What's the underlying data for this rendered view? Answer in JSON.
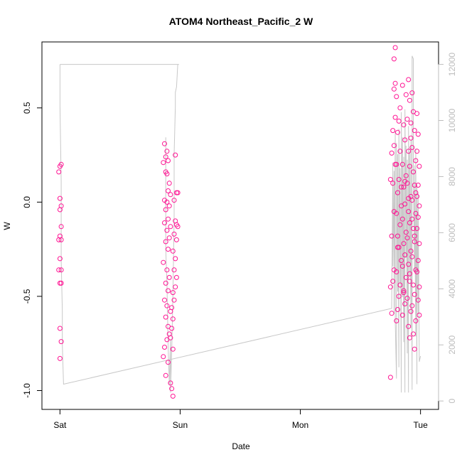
{
  "chart_data": {
    "type": "scatter",
    "title": "ATOM4 Northeast_Pacific_2 W",
    "xlabel": "Date",
    "ylabel": "W",
    "x_ticks": [
      {
        "label": "Sat",
        "value": 0
      },
      {
        "label": "Sun",
        "value": 1
      },
      {
        "label": "Mon",
        "value": 2
      },
      {
        "label": "Tue",
        "value": 3
      }
    ],
    "xlim": [
      -0.15,
      3.15
    ],
    "ylim": [
      -1.1,
      0.85
    ],
    "y_ticks": [
      -1.0,
      -0.5,
      0.0,
      0.5
    ],
    "y_tick_labels": [
      "-1.0",
      "-0.5",
      "0.0",
      "0.5"
    ],
    "y2lim": [
      -300,
      12800
    ],
    "y2_ticks": [
      0,
      2000,
      4000,
      6000,
      8000,
      10000,
      12000
    ],
    "y2_tick_labels": [
      "0",
      "2000",
      "4000",
      "6000",
      "8000",
      "10000",
      "12000"
    ],
    "grid": false,
    "series": [
      {
        "kind": "points",
        "axis": "left",
        "color": "#ff1493",
        "points": [
          [
            0.0,
            0.19
          ],
          [
            0.01,
            0.2
          ],
          [
            -0.01,
            0.16
          ],
          [
            0.0,
            0.02
          ],
          [
            0.01,
            -0.02
          ],
          [
            0.0,
            -0.04
          ],
          [
            0.01,
            -0.13
          ],
          [
            0.0,
            -0.18
          ],
          [
            -0.01,
            -0.2
          ],
          [
            0.01,
            -0.2
          ],
          [
            0.0,
            -0.3
          ],
          [
            -0.01,
            -0.36
          ],
          [
            0.01,
            -0.36
          ],
          [
            0.0,
            -0.43
          ],
          [
            0.01,
            -0.43
          ],
          [
            0.0,
            -0.67
          ],
          [
            0.01,
            -0.74
          ],
          [
            0.0,
            -0.83
          ],
          [
            0.87,
            0.31
          ],
          [
            0.89,
            0.27
          ],
          [
            0.88,
            0.24
          ],
          [
            0.9,
            0.22
          ],
          [
            0.86,
            0.21
          ],
          [
            0.88,
            0.16
          ],
          [
            0.89,
            0.15
          ],
          [
            0.91,
            0.1
          ],
          [
            0.9,
            0.06
          ],
          [
            0.92,
            0.04
          ],
          [
            0.87,
            0.01
          ],
          [
            0.89,
            0.0
          ],
          [
            0.91,
            -0.02
          ],
          [
            0.88,
            -0.04
          ],
          [
            0.9,
            -0.09
          ],
          [
            0.87,
            -0.11
          ],
          [
            0.92,
            -0.13
          ],
          [
            0.89,
            -0.15
          ],
          [
            0.91,
            -0.19
          ],
          [
            0.88,
            -0.21
          ],
          [
            0.9,
            -0.25
          ],
          [
            0.86,
            -0.32
          ],
          [
            0.89,
            -0.36
          ],
          [
            0.91,
            -0.4
          ],
          [
            0.88,
            -0.43
          ],
          [
            0.9,
            -0.47
          ],
          [
            0.87,
            -0.52
          ],
          [
            0.89,
            -0.55
          ],
          [
            0.92,
            -0.58
          ],
          [
            0.88,
            -0.61
          ],
          [
            0.9,
            -0.66
          ],
          [
            0.91,
            -0.7
          ],
          [
            0.89,
            -0.73
          ],
          [
            0.87,
            -0.77
          ],
          [
            0.86,
            -0.82
          ],
          [
            0.9,
            -0.85
          ],
          [
            0.88,
            -0.92
          ],
          [
            0.92,
            -0.96
          ],
          [
            0.93,
            -0.99
          ],
          [
            0.94,
            -1.03
          ],
          [
            0.96,
            0.25
          ],
          [
            0.97,
            0.05
          ],
          [
            0.98,
            0.05
          ],
          [
            0.95,
            0.01
          ],
          [
            0.96,
            -0.1
          ],
          [
            0.97,
            -0.12
          ],
          [
            0.98,
            -0.13
          ],
          [
            0.95,
            -0.17
          ],
          [
            0.97,
            -0.2
          ],
          [
            0.94,
            -0.26
          ],
          [
            0.96,
            -0.3
          ],
          [
            0.95,
            -0.36
          ],
          [
            0.97,
            -0.4
          ],
          [
            0.96,
            -0.45
          ],
          [
            0.94,
            -0.48
          ],
          [
            0.95,
            -0.52
          ],
          [
            0.93,
            -0.56
          ],
          [
            0.94,
            -0.62
          ],
          [
            0.93,
            -0.67
          ],
          [
            0.92,
            -0.72
          ],
          [
            0.94,
            -0.78
          ],
          [
            2.75,
            -0.93
          ],
          [
            2.76,
            -0.59
          ],
          [
            2.75,
            -0.45
          ],
          [
            2.77,
            -0.42
          ],
          [
            2.76,
            -0.18
          ],
          [
            2.78,
            -0.05
          ],
          [
            2.77,
            0.1
          ],
          [
            2.75,
            0.12
          ],
          [
            2.79,
            0.2
          ],
          [
            2.76,
            0.26
          ],
          [
            2.78,
            0.3
          ],
          [
            2.77,
            0.38
          ],
          [
            2.79,
            0.45
          ],
          [
            2.78,
            0.6
          ],
          [
            2.79,
            0.63
          ],
          [
            2.78,
            0.76
          ],
          [
            2.79,
            0.82
          ],
          [
            2.8,
            0.56
          ],
          [
            2.82,
            0.43
          ],
          [
            2.81,
            0.37
          ],
          [
            2.83,
            0.27
          ],
          [
            2.8,
            0.2
          ],
          [
            2.82,
            0.12
          ],
          [
            2.81,
            0.05
          ],
          [
            2.84,
            -0.02
          ],
          [
            2.8,
            -0.06
          ],
          [
            2.83,
            -0.12
          ],
          [
            2.81,
            -0.18
          ],
          [
            2.82,
            -0.24
          ],
          [
            2.84,
            -0.31
          ],
          [
            2.8,
            -0.37
          ],
          [
            2.83,
            -0.44
          ],
          [
            2.82,
            -0.5
          ],
          [
            2.81,
            -0.57
          ],
          [
            2.8,
            -0.63
          ],
          [
            2.85,
            0.62
          ],
          [
            2.86,
            0.41
          ],
          [
            2.87,
            0.33
          ],
          [
            2.85,
            0.2
          ],
          [
            2.88,
            0.14
          ],
          [
            2.86,
            0.08
          ],
          [
            2.87,
            -0.01
          ],
          [
            2.85,
            -0.09
          ],
          [
            2.88,
            -0.16
          ],
          [
            2.86,
            -0.22
          ],
          [
            2.87,
            -0.28
          ],
          [
            2.85,
            -0.34
          ],
          [
            2.88,
            -0.4
          ],
          [
            2.86,
            -0.47
          ],
          [
            2.87,
            -0.54
          ],
          [
            2.85,
            -0.6
          ],
          [
            2.9,
            0.65
          ],
          [
            2.91,
            0.54
          ],
          [
            2.89,
            0.44
          ],
          [
            2.92,
            0.34
          ],
          [
            2.9,
            0.27
          ],
          [
            2.91,
            0.19
          ],
          [
            2.89,
            0.1
          ],
          [
            2.92,
            0.03
          ],
          [
            2.9,
            -0.05
          ],
          [
            2.91,
            -0.11
          ],
          [
            2.89,
            -0.19
          ],
          [
            2.92,
            -0.26
          ],
          [
            2.9,
            -0.33
          ],
          [
            2.91,
            -0.42
          ],
          [
            2.89,
            -0.51
          ],
          [
            2.92,
            -0.58
          ],
          [
            2.9,
            -0.66
          ],
          [
            2.91,
            -0.72
          ],
          [
            2.93,
            0.58
          ],
          [
            2.94,
            0.48
          ],
          [
            2.95,
            0.38
          ],
          [
            2.93,
            0.29
          ],
          [
            2.96,
            0.22
          ],
          [
            2.94,
            0.16
          ],
          [
            2.95,
            0.09
          ],
          [
            2.93,
            0.01
          ],
          [
            2.96,
            -0.06
          ],
          [
            2.94,
            -0.14
          ],
          [
            2.95,
            -0.21
          ],
          [
            2.93,
            -0.29
          ],
          [
            2.96,
            -0.36
          ],
          [
            2.94,
            -0.44
          ],
          [
            2.95,
            -0.49
          ],
          [
            2.93,
            -0.55
          ],
          [
            2.96,
            -0.63
          ],
          [
            2.94,
            -0.7
          ],
          [
            2.95,
            -0.78
          ],
          [
            2.97,
            0.47
          ],
          [
            2.98,
            0.36
          ],
          [
            2.97,
            0.27
          ],
          [
            2.99,
            0.19
          ],
          [
            2.98,
            0.09
          ],
          [
            2.97,
            0.03
          ],
          [
            2.99,
            -0.02
          ],
          [
            2.98,
            -0.08
          ],
          [
            2.97,
            -0.14
          ],
          [
            2.99,
            -0.22
          ],
          [
            2.98,
            -0.31
          ],
          [
            2.97,
            -0.37
          ],
          [
            2.99,
            -0.45
          ],
          [
            2.98,
            -0.52
          ],
          [
            2.99,
            -0.6
          ],
          [
            2.78,
            -0.36
          ],
          [
            2.81,
            -0.24
          ],
          [
            2.84,
            0.08
          ],
          [
            2.87,
            0.11
          ],
          [
            2.9,
            0.02
          ],
          [
            2.93,
            -0.09
          ],
          [
            2.96,
            0.05
          ],
          [
            2.83,
            0.5
          ],
          [
            2.88,
            0.57
          ],
          [
            2.92,
            0.42
          ],
          [
            2.86,
            -0.48
          ],
          [
            2.91,
            -0.38
          ],
          [
            2.95,
            -0.18
          ]
        ]
      },
      {
        "kind": "line",
        "axis": "right",
        "color": "#c8c8c8",
        "points": [
          [
            0.0,
            12000
          ],
          [
            0.0,
            11900
          ],
          [
            0.0,
            10500
          ],
          [
            0.01,
            7800
          ],
          [
            0.01,
            5000
          ],
          [
            0.02,
            3200
          ],
          [
            0.02,
            2000
          ],
          [
            0.03,
            600
          ],
          [
            2.76,
            3300
          ],
          [
            2.76,
            3500
          ],
          [
            2.77,
            8500
          ],
          [
            2.77,
            4800
          ],
          [
            2.78,
            8200
          ],
          [
            2.78,
            3100
          ],
          [
            2.79,
            9600
          ],
          [
            2.79,
            2800
          ],
          [
            2.8,
            800
          ],
          [
            2.8,
            9200
          ],
          [
            2.81,
            3900
          ],
          [
            2.81,
            8800
          ],
          [
            2.82,
            1200
          ],
          [
            2.82,
            9700
          ],
          [
            2.83,
            4200
          ],
          [
            2.83,
            8300
          ],
          [
            2.84,
            300
          ],
          [
            2.84,
            10300
          ],
          [
            2.85,
            3700
          ],
          [
            2.85,
            9400
          ],
          [
            2.86,
            2100
          ],
          [
            2.86,
            8700
          ],
          [
            2.87,
            300
          ],
          [
            2.87,
            10400
          ],
          [
            2.88,
            5100
          ],
          [
            2.88,
            9100
          ],
          [
            2.89,
            1700
          ],
          [
            2.89,
            8600
          ],
          [
            2.9,
            300
          ],
          [
            2.9,
            9800
          ],
          [
            2.91,
            4400
          ],
          [
            2.91,
            8900
          ],
          [
            2.92,
            2600
          ],
          [
            2.92,
            9300
          ],
          [
            2.93,
            400
          ],
          [
            2.93,
            12300
          ],
          [
            2.94,
            12200
          ],
          [
            2.94,
            7900
          ],
          [
            2.95,
            4600
          ],
          [
            2.95,
            8400
          ],
          [
            2.96,
            2300
          ],
          [
            2.96,
            9000
          ],
          [
            2.97,
            600
          ],
          [
            2.97,
            7700
          ],
          [
            2.98,
            3100
          ],
          [
            2.98,
            7400
          ],
          [
            2.99,
            1400
          ],
          [
            3.0,
            1600
          ]
        ]
      },
      {
        "kind": "line",
        "axis": "right",
        "color": "#c8c8c8",
        "points": [
          [
            0.0,
            12000
          ],
          [
            0.99,
            12000
          ],
          [
            0.98,
            12000
          ],
          [
            0.97,
            11200
          ],
          [
            0.96,
            11000
          ],
          [
            0.96,
            10500
          ],
          [
            0.95,
            8800
          ],
          [
            0.95,
            6500
          ],
          [
            0.94,
            3800
          ],
          [
            0.93,
            1800
          ],
          [
            0.92,
            300
          ],
          [
            0.92,
            2200
          ],
          [
            0.91,
            600
          ],
          [
            0.9,
            2000
          ],
          [
            0.89,
            4200
          ],
          [
            0.88,
            5400
          ],
          [
            0.88,
            9400
          ]
        ]
      }
    ]
  }
}
